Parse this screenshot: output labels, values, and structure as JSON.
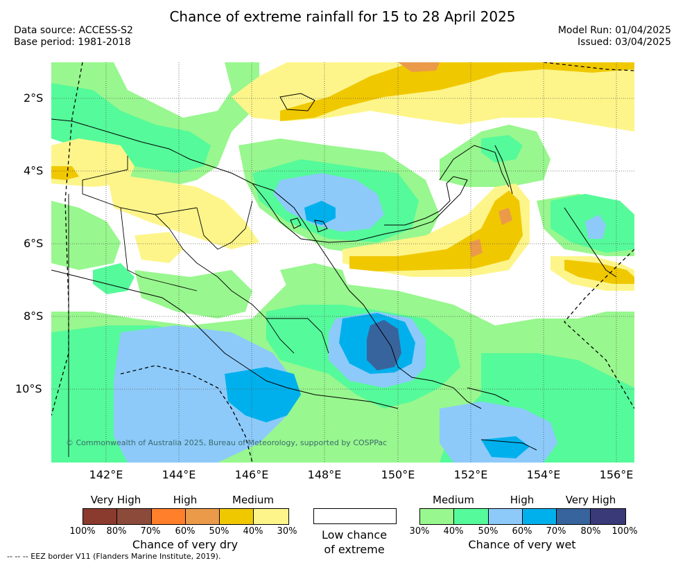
{
  "title": "Chance of extreme rainfall for 15 to 28 April 2025",
  "meta": {
    "data_source": "Data source: ACCESS-S2",
    "base_period": "Base period: 1981-2018",
    "model_run": "Model Run: 01/04/2025",
    "issued": "Issued: 03/04/2025"
  },
  "axes": {
    "lat_labels": [
      "2°S",
      "4°S",
      "6°S",
      "8°S",
      "10°S"
    ],
    "lon_labels": [
      "142°E",
      "144°E",
      "146°E",
      "148°E",
      "150°E",
      "152°E",
      "154°E",
      "156°E"
    ]
  },
  "copyright": "© Commonwealth of Australia 2025, Bureau of Meteorology, supported by COSPPac",
  "legend": {
    "dry": {
      "levels": [
        "Very High",
        "High",
        "Medium"
      ],
      "percents": [
        "100%",
        "80%",
        "70%",
        "60%",
        "50%",
        "40%",
        "30%"
      ],
      "colors": [
        "#8b3a2e",
        "#8b4a3a",
        "#ff7f2a",
        "#eb9a4a",
        "#f0c800",
        "#fdf58a"
      ],
      "caption": "Chance of very dry"
    },
    "neutral": {
      "caption_line1": "Low chance",
      "caption_line2": "of extreme",
      "color": "#ffffff"
    },
    "wet": {
      "levels": [
        "Medium",
        "High",
        "Very High"
      ],
      "percents": [
        "30%",
        "40%",
        "50%",
        "60%",
        "70%",
        "80%",
        "100%"
      ],
      "colors": [
        "#98f78e",
        "#55fa9a",
        "#8dcafa",
        "#00b0ec",
        "#38649e",
        "#3a3a78"
      ],
      "caption": "Chance of very wet"
    }
  },
  "footer": "-- -- -- EEZ border V11 (Flanders Marine Institute, 2019)."
}
